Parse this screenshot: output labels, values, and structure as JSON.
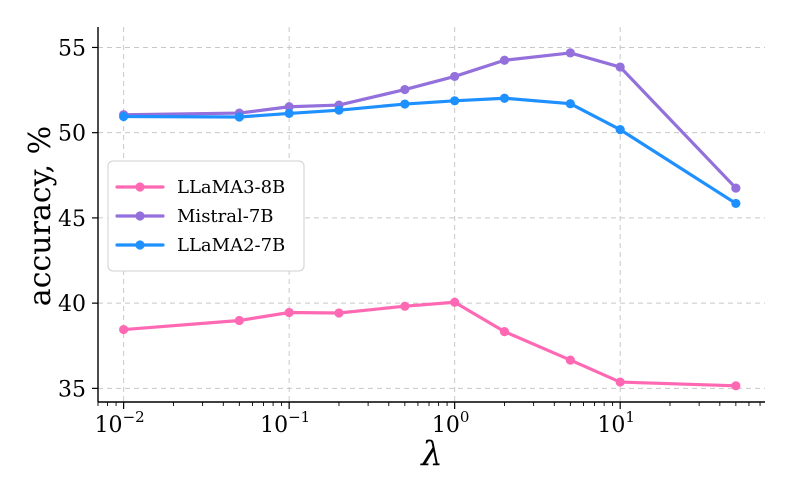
{
  "chart_data": {
    "type": "line",
    "title": "",
    "xlabel": "λ",
    "ylabel": "accuracy, %",
    "xscale": "log",
    "xlim": [
      0.007,
      75
    ],
    "ylim": [
      34.2,
      56.2
    ],
    "x_ticks": [
      {
        "value": 0.01,
        "base": "10",
        "exp": "−2"
      },
      {
        "value": 0.1,
        "base": "10",
        "exp": "−1"
      },
      {
        "value": 1,
        "base": "10",
        "exp": "0"
      },
      {
        "value": 10,
        "base": "10",
        "exp": "1"
      }
    ],
    "y_ticks": [
      {
        "value": 35,
        "label": "35"
      },
      {
        "value": 40,
        "label": "40"
      },
      {
        "value": 45,
        "label": "45"
      },
      {
        "value": 50,
        "label": "50"
      },
      {
        "value": 55,
        "label": "55"
      }
    ],
    "grid": true,
    "legend_position": "center-left",
    "x": [
      0.01,
      0.05,
      0.1,
      0.2,
      0.5,
      1,
      2,
      5,
      10,
      50
    ],
    "series": [
      {
        "name": "LLaMA3-8B",
        "color": "#ff69b4",
        "values": [
          38.45,
          38.98,
          39.45,
          39.42,
          39.82,
          40.05,
          38.33,
          36.66,
          35.37,
          35.15
        ]
      },
      {
        "name": "Mistral-7B",
        "color": "#9370db",
        "values": [
          51.05,
          51.15,
          51.52,
          51.62,
          52.53,
          53.3,
          54.25,
          54.68,
          53.85,
          46.75
        ]
      },
      {
        "name": "LLaMA2-7B",
        "color": "#1e90ff",
        "values": [
          50.95,
          50.92,
          51.13,
          51.32,
          51.68,
          51.87,
          52.02,
          51.7,
          50.18,
          45.85
        ]
      }
    ]
  }
}
